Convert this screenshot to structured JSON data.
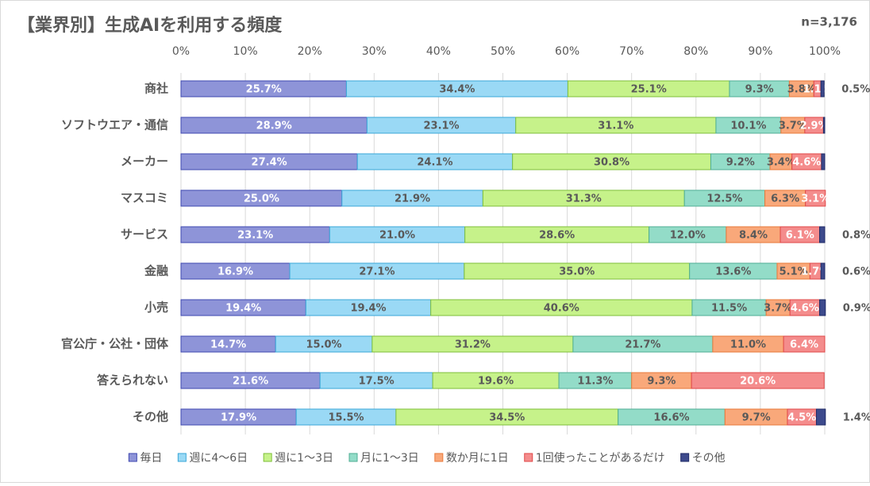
{
  "chart_data": {
    "type": "stacked-barh",
    "title": "【業界別】生成AIを利用する頻度",
    "subtitle": "n=3,176",
    "categories": [
      "商社",
      "ソフトウエア・通信",
      "メーカー",
      "マスコミ",
      "サービス",
      "金融",
      "小売",
      "官公庁・公社・団体",
      "答えられない",
      "その他"
    ],
    "xlim": [
      0,
      100
    ],
    "xticks": [
      {
        "value": 0,
        "label": "0%"
      },
      {
        "value": 10,
        "label": "10%"
      },
      {
        "value": 20,
        "label": "20%"
      },
      {
        "value": 30,
        "label": "30%"
      },
      {
        "value": 40,
        "label": "40%"
      },
      {
        "value": 50,
        "label": "50%"
      },
      {
        "value": 60,
        "label": "60%"
      },
      {
        "value": 70,
        "label": "70%"
      },
      {
        "value": 80,
        "label": "80%"
      },
      {
        "value": 90,
        "label": "90%"
      },
      {
        "value": 100,
        "label": "100%"
      }
    ],
    "grid": true,
    "legend": "bottom",
    "series": [
      {
        "name": "毎日",
        "color": "#8e94d8",
        "values": [
          25.7,
          28.9,
          27.4,
          25.0,
          23.1,
          16.9,
          19.4,
          14.7,
          21.6,
          17.9
        ],
        "value_labels": [
          "25.7%",
          "28.9%",
          "27.4%",
          "25.0%",
          "23.1%",
          "16.9%",
          "19.4%",
          "14.7%",
          "21.6%",
          "17.9%"
        ]
      },
      {
        "name": "週に4～6日",
        "color": "#9ad9f5",
        "values": [
          34.4,
          23.1,
          24.1,
          21.9,
          21.0,
          27.1,
          19.4,
          15.0,
          17.5,
          15.5
        ],
        "value_labels": [
          "34.4%",
          "23.1%",
          "24.1%",
          "21.9%",
          "21.0%",
          "27.1%",
          "19.4%",
          "15.0%",
          "17.5%",
          "15.5%"
        ]
      },
      {
        "name": "週に1～3日",
        "color": "#c6f28a",
        "values": [
          25.1,
          31.1,
          30.8,
          31.3,
          28.6,
          35.0,
          40.6,
          31.2,
          19.6,
          34.5
        ],
        "value_labels": [
          "25.1%",
          "31.1%",
          "30.8%",
          "31.3%",
          "28.6%",
          "35.0%",
          "40.6%",
          "31.2%",
          "19.6%",
          "34.5%"
        ]
      },
      {
        "name": "月に1～3日",
        "color": "#93dcc8",
        "values": [
          9.3,
          10.1,
          9.2,
          12.5,
          12.0,
          13.6,
          11.5,
          21.7,
          11.3,
          16.6
        ],
        "value_labels": [
          "9.3%",
          "10.1%",
          "9.2%",
          "12.5%",
          "12.0%",
          "13.6%",
          "11.5%",
          "21.7%",
          "11.3%",
          "16.6%"
        ]
      },
      {
        "name": "数か月に1日",
        "color": "#f9a87a",
        "values": [
          3.8,
          3.7,
          3.4,
          6.3,
          8.4,
          5.1,
          3.7,
          11.0,
          9.3,
          9.7
        ],
        "value_labels": [
          "3.8%",
          "3.7%",
          "3.4%",
          "6.3%",
          "8.4%",
          "5.1%",
          "3.7%",
          "11.0%",
          "9.3%",
          "9.7%"
        ]
      },
      {
        "name": "1回使ったことがあるだけ",
        "color": "#f48c8c",
        "values": [
          1.1,
          2.9,
          4.6,
          3.1,
          6.1,
          1.7,
          4.6,
          6.4,
          20.6,
          4.5
        ],
        "value_labels": [
          "1.1%",
          "2.9%",
          "4.6%",
          "3.1%",
          "6.1%",
          "1.7%",
          "4.6%",
          "6.4%",
          "20.6%",
          "4.5%"
        ]
      },
      {
        "name": "その他",
        "color": "#3d4a8c",
        "values": [
          0.5,
          0.2,
          0.5,
          0,
          0.8,
          0.6,
          0.9,
          0,
          0,
          1.4
        ],
        "value_labels": [
          "0.5%",
          null,
          null,
          null,
          "0.8%",
          "0.6%",
          "0.9%",
          null,
          null,
          "1.4%"
        ]
      }
    ]
  }
}
